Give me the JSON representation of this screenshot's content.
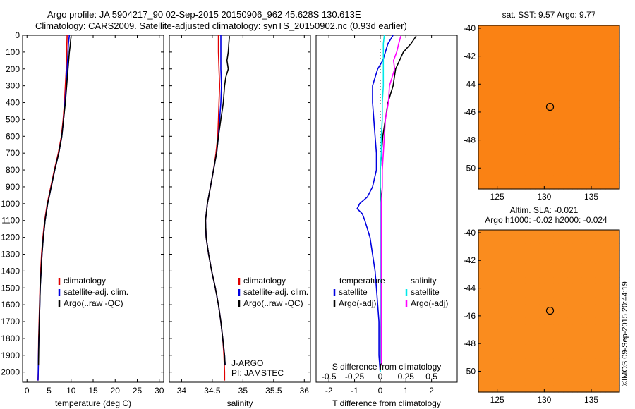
{
  "header": {
    "line1": "Argo profile: JA 5904217_90 02-Sep-2015 20150906_962 45.628S 130.613E",
    "line2": "Climatology: CARS2009. Satellite-adjusted climatology: synTS_20150902.nc (0.93d earlier)"
  },
  "credit": "©IMOS 09-Sep-2015 20:44:19",
  "colors": {
    "red": "#e00000",
    "blue": "#0000e0",
    "black": "#000000",
    "cyan": "#00e8e8",
    "magenta": "#ff00ff"
  },
  "chart_data": [
    {
      "type": "line",
      "id": "temperature",
      "xlabel": "temperature (deg C)",
      "xlim": [
        -1,
        31
      ],
      "ylim": [
        2060,
        0
      ],
      "xticks": [
        0,
        5,
        10,
        15,
        20,
        25,
        30
      ],
      "yticks": [
        0,
        100,
        200,
        300,
        400,
        500,
        600,
        700,
        800,
        900,
        1000,
        1100,
        1200,
        1300,
        1400,
        1500,
        1600,
        1700,
        1800,
        1900,
        2000
      ],
      "legend": {
        "placement": "lower-right",
        "entries": [
          "climatology",
          "satellite-adj. clim.",
          "Argo(..raw -QC)"
        ]
      },
      "series": [
        {
          "name": "climatology",
          "color": "red",
          "depth": [
            0,
            100,
            200,
            300,
            400,
            500,
            600,
            700,
            800,
            900,
            1000,
            1100,
            1200,
            1300,
            1400,
            1500,
            1600,
            1700,
            1800,
            1900,
            2000,
            2050
          ],
          "values": [
            9.1,
            9.0,
            8.9,
            8.7,
            8.5,
            8.2,
            7.8,
            7.1,
            6.2,
            5.4,
            4.6,
            4.0,
            3.6,
            3.3,
            3.1,
            2.95,
            2.85,
            2.75,
            2.65,
            2.6,
            2.55,
            2.5
          ]
        },
        {
          "name": "satellite-adj. clim.",
          "color": "blue",
          "depth": [
            0,
            50,
            100,
            200,
            300,
            400,
            500,
            600,
            700,
            800,
            900,
            1000,
            1100,
            1200,
            1300,
            1400,
            1500,
            1600,
            1700,
            1800,
            1900,
            2000,
            2050
          ],
          "values": [
            9.6,
            9.4,
            9.3,
            9.1,
            8.9,
            8.6,
            8.3,
            7.9,
            7.2,
            6.3,
            5.5,
            4.7,
            4.1,
            3.7,
            3.4,
            3.2,
            3.0,
            2.9,
            2.8,
            2.7,
            2.6,
            2.55,
            2.5
          ]
        },
        {
          "name": "Argo(..raw -QC)",
          "color": "black",
          "depth": [
            5,
            30,
            60,
            100,
            200,
            300,
            400,
            500,
            600,
            700,
            800,
            900,
            1000,
            1100,
            1200,
            1300,
            1400,
            1500,
            1600,
            1700,
            1800,
            1900,
            1960
          ],
          "values": [
            10.0,
            9.9,
            9.8,
            9.6,
            9.3,
            9.0,
            8.7,
            8.3,
            7.9,
            7.2,
            6.3,
            5.5,
            4.7,
            4.1,
            3.7,
            3.4,
            3.2,
            3.0,
            2.9,
            2.8,
            2.7,
            2.65,
            2.6
          ]
        }
      ]
    },
    {
      "type": "line",
      "id": "salinity",
      "xlabel": "salinity",
      "xlim": [
        33.8,
        36.1
      ],
      "ylim": [
        2060,
        0
      ],
      "xticks": [
        34,
        34.5,
        35,
        35.5,
        36
      ],
      "legend": {
        "placement": "lower-right",
        "entries": [
          "climatology",
          "satellite-adj. clim.",
          "Argo(..raw -QC)"
        ]
      },
      "annotation": [
        "J-ARGO",
        "PI: JAMSTEC"
      ],
      "series": [
        {
          "name": "climatology",
          "color": "red",
          "depth": [
            0,
            100,
            200,
            300,
            400,
            500,
            600,
            700,
            800,
            900,
            1000,
            1100,
            1200,
            1300,
            1400,
            1500,
            1600,
            1700,
            1800,
            1900,
            2000,
            2050
          ],
          "values": [
            34.6,
            34.6,
            34.61,
            34.62,
            34.61,
            34.6,
            34.59,
            34.56,
            34.52,
            34.47,
            34.42,
            34.39,
            34.4,
            34.44,
            34.49,
            34.55,
            34.6,
            34.64,
            34.67,
            34.69,
            34.7,
            34.7
          ]
        },
        {
          "name": "satellite-adj. clim.",
          "color": "blue",
          "depth": [
            0,
            100,
            200,
            300,
            400,
            500,
            600,
            700,
            800,
            900,
            1000,
            1100,
            1200,
            1300,
            1400,
            1500,
            1600,
            1700,
            1800,
            1900,
            1960
          ],
          "values": [
            34.64,
            34.64,
            34.64,
            34.65,
            34.64,
            34.62,
            34.6,
            34.57,
            34.52,
            34.47,
            34.42,
            34.39,
            34.4,
            34.44,
            34.49,
            34.55,
            34.6,
            34.64,
            34.67,
            34.7,
            34.71
          ]
        },
        {
          "name": "Argo(..raw -QC)",
          "color": "black",
          "depth": [
            5,
            50,
            100,
            150,
            200,
            250,
            300,
            350,
            400,
            450,
            500,
            550,
            600,
            700,
            800,
            900,
            1000,
            1100,
            1200,
            1300,
            1400,
            1500,
            1600,
            1700,
            1800,
            1900,
            1960
          ],
          "values": [
            34.78,
            34.77,
            34.76,
            34.74,
            34.76,
            34.72,
            34.7,
            34.69,
            34.68,
            34.66,
            34.64,
            34.62,
            34.6,
            34.57,
            34.52,
            34.47,
            34.42,
            34.39,
            34.4,
            34.44,
            34.49,
            34.55,
            34.6,
            34.64,
            34.67,
            34.7,
            34.71
          ]
        }
      ]
    },
    {
      "type": "line",
      "id": "difference",
      "xlabel": "T difference from climatology",
      "xlabel2": "S difference from climatology",
      "xlim": [
        -2.5,
        3
      ],
      "xticks": [
        -2,
        -1,
        0,
        1,
        2
      ],
      "xticks2": [
        -0.5,
        -0.25,
        0,
        0.25,
        0.5
      ],
      "ylim": [
        2060,
        0
      ],
      "legend": {
        "placement": "lower-center",
        "group1": "temperature",
        "group2": "salinity",
        "entries": [
          "satellite",
          "Argo(-adj)",
          "satellite",
          "Argo(-adj)"
        ]
      },
      "series": [
        {
          "name": "satellite",
          "quantity": "temperature",
          "color": "blue",
          "depth": [
            0,
            50,
            100,
            150,
            200,
            250,
            300,
            400,
            500,
            600,
            700,
            800,
            900,
            960,
            1000,
            1030,
            1060,
            1100,
            1200,
            1300,
            1400,
            1500,
            1600,
            1700,
            1800,
            1900,
            2000
          ],
          "values": [
            0.5,
            0.3,
            0.2,
            0.1,
            -0.1,
            -0.2,
            -0.3,
            -0.3,
            -0.25,
            -0.2,
            -0.15,
            -0.15,
            -0.3,
            -0.5,
            -0.8,
            -0.9,
            -0.7,
            -0.6,
            -0.4,
            -0.3,
            -0.2,
            -0.15,
            -0.1,
            -0.05,
            -0.05,
            -0.05,
            0
          ]
        },
        {
          "name": "Argo(-adj)",
          "quantity": "temperature",
          "color": "black",
          "depth": [
            5,
            50,
            100,
            200,
            300,
            400,
            500,
            600,
            700,
            800,
            900,
            1000,
            1100,
            1200,
            1300,
            1400,
            1500,
            1600,
            1700,
            1800,
            1900,
            1960
          ],
          "values": [
            1.4,
            1.2,
            0.9,
            0.6,
            0.5,
            0.3,
            0.2,
            0.1,
            0.05,
            0,
            0,
            0.05,
            0.05,
            0.05,
            0.05,
            0.05,
            0.05,
            0.05,
            0.05,
            0.02,
            0.02,
            0
          ]
        },
        {
          "name": "satellite",
          "quantity": "salinity",
          "color": "cyan",
          "depth": [
            0,
            50,
            100,
            200,
            300,
            400,
            500,
            600,
            700,
            800,
            900,
            1000,
            1100,
            1200,
            1300,
            1400,
            1500,
            1600,
            1700,
            1800,
            1900,
            2000
          ],
          "values": [
            0.04,
            0.03,
            0.03,
            0.03,
            0.03,
            0.02,
            0.02,
            0.01,
            0.01,
            0,
            0,
            0,
            0,
            0,
            0,
            0,
            0,
            0,
            0,
            0,
            0,
            0
          ]
        },
        {
          "name": "Argo(-adj)",
          "quantity": "salinity",
          "color": "magenta",
          "depth": [
            5,
            50,
            100,
            150,
            200,
            300,
            400,
            500,
            600,
            700,
            800,
            900,
            1000,
            1100,
            1200,
            1300,
            1400,
            1500,
            1600,
            1700,
            1800,
            1900,
            1960
          ],
          "values": [
            0.2,
            0.18,
            0.16,
            0.13,
            0.14,
            0.09,
            0.08,
            0.05,
            0.04,
            0.03,
            0.02,
            0.02,
            0.01,
            0.01,
            0.01,
            0.01,
            0.01,
            0.01,
            0.01,
            0.01,
            0.01,
            0.01,
            0.01
          ]
        }
      ]
    },
    {
      "type": "heatmap",
      "id": "sst-map",
      "title": "sat. SST: 9.57 Argo: 9.77",
      "xlim": [
        123,
        138
      ],
      "ylim": [
        -51.5,
        -39.8
      ],
      "xticks": [
        125,
        130,
        135
      ],
      "yticks": [
        -40,
        -42,
        -44,
        -46,
        -48,
        -50
      ],
      "marker": {
        "lon": 130.613,
        "lat": -45.628
      }
    },
    {
      "type": "heatmap",
      "id": "sla-map",
      "title": "Altim. SLA: -0.021",
      "subtitle": "Argo h1000: -0.02 h2000: -0.024",
      "xlim": [
        123,
        138
      ],
      "ylim": [
        -51.5,
        -39.8
      ],
      "xticks": [
        125,
        130,
        135
      ],
      "yticks": [
        -40,
        -42,
        -44,
        -46,
        -48,
        -50
      ],
      "marker": {
        "lon": 130.613,
        "lat": -45.628
      }
    }
  ]
}
